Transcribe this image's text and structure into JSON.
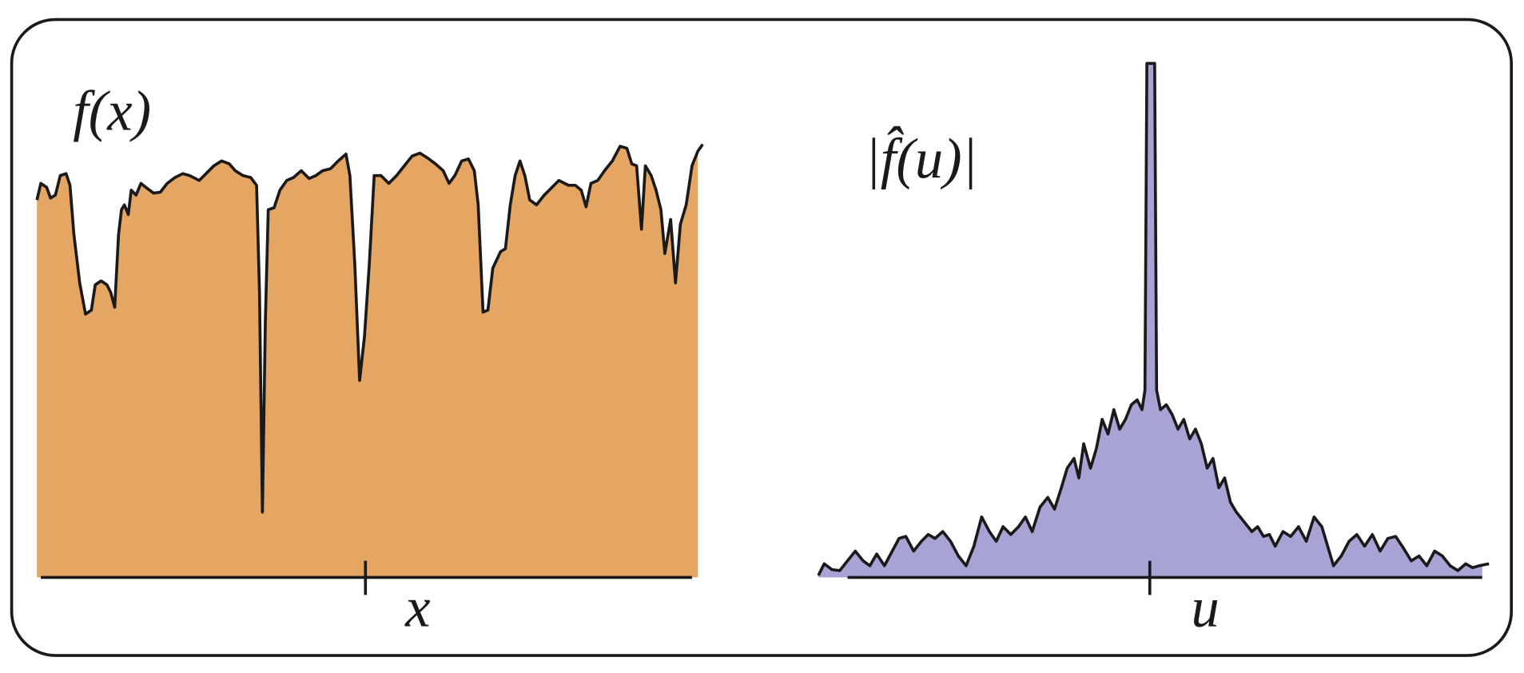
{
  "left_panel": {
    "function_label": "f(x)",
    "axis_label": "x"
  },
  "right_panel": {
    "function_label": "|f̂(u)|",
    "axis_label": "u"
  }
}
